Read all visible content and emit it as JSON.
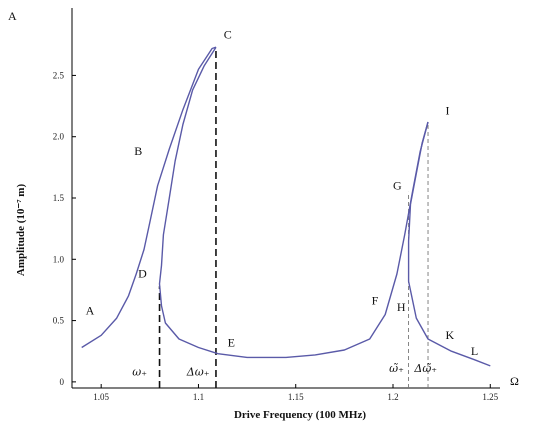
{
  "chart_data": {
    "type": "line",
    "title": "",
    "xlabel": "Drive Frequency (100 MHz)",
    "ylabel": "Amplitude (10⁻⁷ m)",
    "x_axis_name": "Ω",
    "y_axis_name": "A",
    "xlim": [
      1.035,
      1.255
    ],
    "ylim": [
      -0.05,
      3.05
    ],
    "x_ticks": [
      {
        "value": 1.05,
        "label": "1.05"
      },
      {
        "value": 1.1,
        "label": "1.1"
      },
      {
        "value": 1.15,
        "label": "1.15"
      },
      {
        "value": 1.2,
        "label": "1.2"
      },
      {
        "value": 1.25,
        "label": "1.25"
      }
    ],
    "y_ticks": [
      {
        "value": 0,
        "label": "0"
      },
      {
        "value": 0.5,
        "label": "0.5"
      },
      {
        "value": 1.0,
        "label": "1.0"
      },
      {
        "value": 1.5,
        "label": "1.5"
      },
      {
        "value": 2.0,
        "label": "2.0"
      },
      {
        "value": 2.5,
        "label": "2.5"
      }
    ],
    "grid": false,
    "series": [
      {
        "color": "#5a5aa8",
        "points": [
          [
            1.04,
            0.28
          ],
          [
            1.05,
            0.38
          ],
          [
            1.058,
            0.52
          ],
          [
            1.064,
            0.7
          ],
          [
            1.068,
            0.88
          ],
          [
            1.072,
            1.08
          ],
          [
            1.075,
            1.3
          ],
          [
            1.079,
            1.6
          ],
          [
            1.085,
            1.9
          ],
          [
            1.092,
            2.22
          ],
          [
            1.1,
            2.55
          ],
          [
            1.107,
            2.72
          ],
          [
            1.109,
            2.73
          ]
        ]
      },
      {
        "color": "#5a5aa8",
        "points": [
          [
            1.109,
            2.73
          ],
          [
            1.103,
            2.58
          ],
          [
            1.097,
            2.38
          ],
          [
            1.092,
            2.1
          ],
          [
            1.088,
            1.8
          ],
          [
            1.085,
            1.5
          ],
          [
            1.082,
            1.2
          ],
          [
            1.081,
            0.95
          ],
          [
            1.08,
            0.8
          ],
          [
            1.081,
            0.62
          ],
          [
            1.083,
            0.48
          ],
          [
            1.09,
            0.35
          ],
          [
            1.1,
            0.28
          ],
          [
            1.11,
            0.23
          ],
          [
            1.125,
            0.2
          ],
          [
            1.145,
            0.2
          ],
          [
            1.16,
            0.22
          ],
          [
            1.175,
            0.26
          ],
          [
            1.188,
            0.35
          ],
          [
            1.196,
            0.55
          ],
          [
            1.202,
            0.88
          ],
          [
            1.206,
            1.2
          ],
          [
            1.21,
            1.55
          ],
          [
            1.214,
            1.88
          ],
          [
            1.218,
            2.12
          ]
        ]
      },
      {
        "color": "#5a5aa8",
        "points": [
          [
            1.218,
            2.12
          ],
          [
            1.215,
            1.95
          ],
          [
            1.212,
            1.7
          ],
          [
            1.209,
            1.45
          ],
          [
            1.208,
            1.15
          ],
          [
            1.208,
            0.82
          ],
          [
            1.212,
            0.52
          ],
          [
            1.218,
            0.35
          ],
          [
            1.23,
            0.25
          ],
          [
            1.242,
            0.18
          ],
          [
            1.25,
            0.13
          ]
        ]
      }
    ],
    "point_labels": [
      {
        "text": "A",
        "x": 1.042,
        "y": 0.55
      },
      {
        "text": "B",
        "x": 1.067,
        "y": 1.85
      },
      {
        "text": "C",
        "x": 1.113,
        "y": 2.8
      },
      {
        "text": "D",
        "x": 1.069,
        "y": 0.85
      },
      {
        "text": "E",
        "x": 1.115,
        "y": 0.29
      },
      {
        "text": "F",
        "x": 1.189,
        "y": 0.63
      },
      {
        "text": "G",
        "x": 1.2,
        "y": 1.57
      },
      {
        "text": "H",
        "x": 1.202,
        "y": 0.58
      },
      {
        "text": "I",
        "x": 1.227,
        "y": 2.18
      },
      {
        "text": "K",
        "x": 1.227,
        "y": 0.35
      },
      {
        "text": "L",
        "x": 1.24,
        "y": 0.22
      }
    ],
    "vertical_lines": [
      {
        "x": 1.08,
        "y_top": 0.78,
        "style": "dashed-bold"
      },
      {
        "x": 1.109,
        "y_top": 2.73,
        "style": "dashed-bold"
      },
      {
        "x": 1.208,
        "y_top": 1.55,
        "style": "dashed-thin"
      },
      {
        "x": 1.218,
        "y_top": 2.12,
        "style": "dashed-thin"
      }
    ],
    "annotations": [
      {
        "text": "ω₊",
        "x": 1.066,
        "y": 0.05
      },
      {
        "text": "Δω₊",
        "x": 1.094,
        "y": 0.05
      },
      {
        "text": "ω̃₊",
        "x": 1.198,
        "y": 0.08
      },
      {
        "text": "Δω̃₊",
        "x": 1.211,
        "y": 0.08
      }
    ]
  }
}
